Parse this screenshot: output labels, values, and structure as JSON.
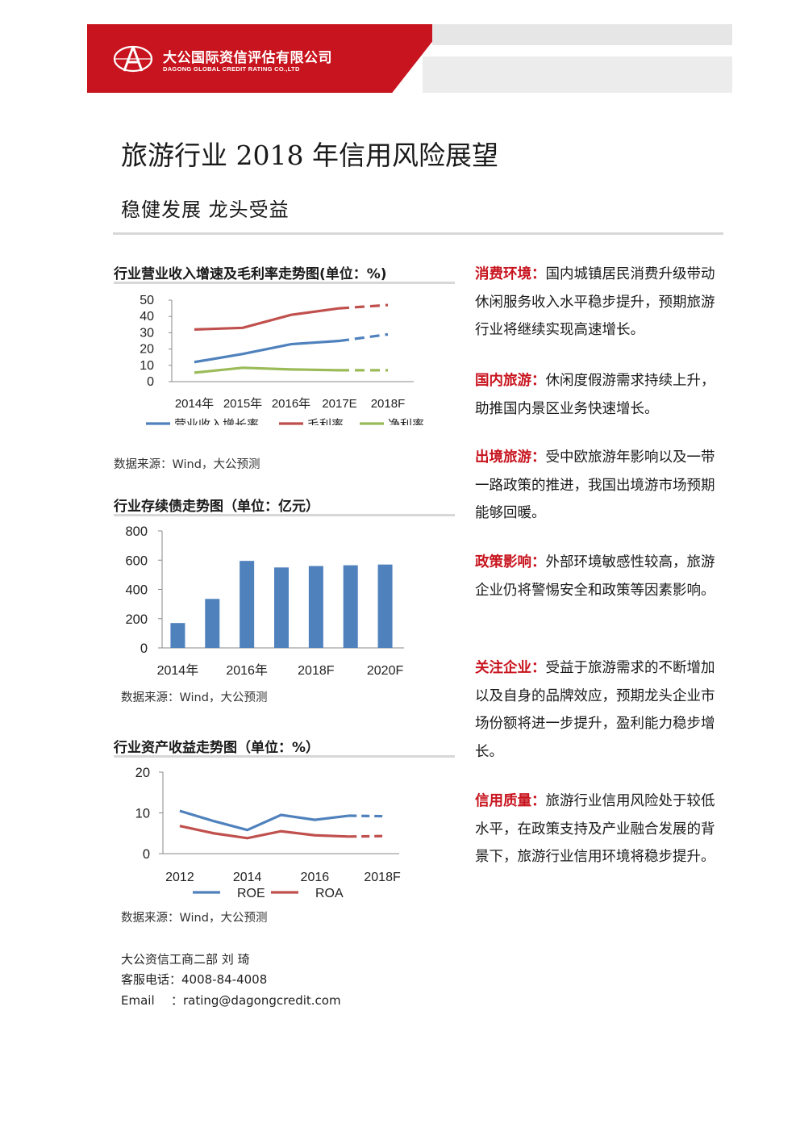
{
  "header": {
    "company_cn": "大公国际资信评估有限公司",
    "company_en": "DAGONG GLOBAL CREDIT RATING CO.,LTD",
    "brand_color": "#c8141e"
  },
  "title": "旅游行业 2018 年信用风险展望",
  "subtitle": "稳健发展  龙头受益",
  "charts": {
    "revenue": {
      "title": "行业营业收入增速及毛利率走势图(单位：%)",
      "source": "数据来源：Wind，大公预测"
    },
    "debt": {
      "title": "行业存续债走势图（单位：亿元）",
      "source": "数据来源：Wind，大公预测"
    },
    "roe": {
      "title": "行业资产收益走势图（单位：%）",
      "source": "数据来源：Wind，大公预测"
    }
  },
  "chart_data": [
    {
      "type": "line",
      "title": "行业营业收入增速及毛利率走势图(单位：%)",
      "categories": [
        "2014年",
        "2015年",
        "2016年",
        "2017E",
        "2018F"
      ],
      "ylim": [
        0,
        50
      ],
      "yticks": [
        "0",
        "10",
        "20",
        "30",
        "40",
        "50"
      ],
      "series": [
        {
          "name": "营业收入增长率",
          "values": [
            12,
            17,
            23,
            25,
            29
          ],
          "color": "#4f81bd"
        },
        {
          "name": "毛利率",
          "values": [
            32,
            33,
            41,
            45,
            47
          ],
          "color": "#c0504d"
        },
        {
          "name": "净利率",
          "values": [
            5.5,
            8.5,
            7.5,
            7,
            7
          ],
          "color": "#9bbb59"
        }
      ],
      "legend": "bottom"
    },
    {
      "type": "bar",
      "title": "行业存续债走势图（单位：亿元）",
      "categories": [
        "2014年",
        "2015年",
        "2016年",
        "2017年",
        "2018F",
        "2019F",
        "2020F"
      ],
      "x_tick_labels": [
        "2014年",
        "2016年",
        "2018F",
        "2020F"
      ],
      "values": [
        170,
        335,
        595,
        550,
        560,
        565,
        570
      ],
      "ylim": [
        0,
        800
      ],
      "yticks": [
        "0",
        "200",
        "400",
        "600",
        "800"
      ],
      "color": "#4f81bd"
    },
    {
      "type": "line",
      "title": "行业资产收益走势图（单位：%）",
      "categories": [
        "2012",
        "2013",
        "2014",
        "2015",
        "2016",
        "2017",
        "2018F"
      ],
      "x_tick_labels": [
        "2012",
        "2014",
        "2016",
        "2018F"
      ],
      "ylim": [
        0,
        20
      ],
      "yticks": [
        "0",
        "10",
        "20"
      ],
      "series": [
        {
          "name": "ROE",
          "values": [
            10.5,
            8,
            5.8,
            9.5,
            8.3,
            9.3,
            9.2
          ],
          "color": "#4f81bd"
        },
        {
          "name": "ROA",
          "values": [
            6.8,
            5,
            3.8,
            5.5,
            4.5,
            4.2,
            4.3
          ],
          "color": "#c0504d"
        }
      ],
      "legend": "bottom"
    }
  ],
  "outlook": [
    {
      "label": "消费环境：",
      "text": "国内城镇居民消费升级带动休闲服务收入水平稳步提升，预期旅游行业将继续实现高速增长。"
    },
    {
      "label": "国内旅游：",
      "text": "休闲度假游需求持续上升，助推国内景区业务快速增长。"
    },
    {
      "label": "出境旅游：",
      "text": "受中欧旅游年影响以及一带一路政策的推进，我国出境游市场预期能够回暖。"
    },
    {
      "label": "政策影响：",
      "text": "外部环境敏感性较高，旅游企业仍将警惕安全和政策等因素影响。"
    },
    {
      "label": "关注企业：",
      "text": "受益于旅游需求的不断增加以及自身的品牌效应，预期龙头企业市场份额将进一步提升，盈利能力稳步增长。"
    },
    {
      "label": "信用质量：",
      "text": "旅游行业信用风险处于较低水平，在政策支持及产业融合发展的背景下，旅游行业信用环境将稳步提升。"
    }
  ],
  "contact": {
    "dept": "大公资信工商二部   刘   琦",
    "phone": "客服电话：4008-84-4008",
    "email_label": "Email",
    "email": "：rating@dagongcredit.com"
  }
}
